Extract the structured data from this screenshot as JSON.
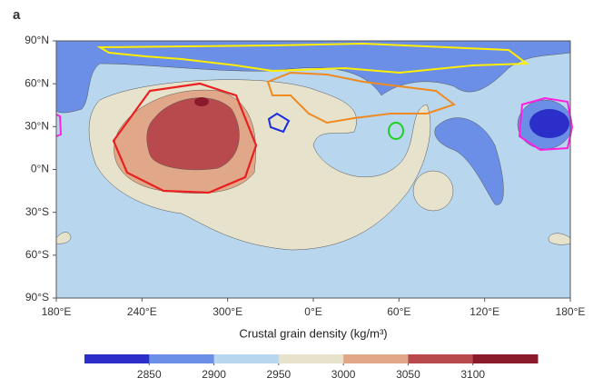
{
  "panel_label": "a",
  "map": {
    "lat_labels": [
      "90°N",
      "60°N",
      "30°N",
      "0°N",
      "30°S",
      "60°S",
      "90°S"
    ],
    "lon_labels": [
      "180°E",
      "240°E",
      "300°E",
      "0°E",
      "60°E",
      "120°E",
      "180°E"
    ]
  },
  "colorbar": {
    "title": "Crustal grain density (kg/m³)",
    "range": [
      2800,
      3150
    ],
    "ticks": [
      2850,
      2900,
      2950,
      3000,
      3050,
      3100
    ],
    "colors": [
      "#2b2ec8",
      "#6b8fe6",
      "#b8d6ee",
      "#e6e2cc",
      "#e0a888",
      "#b84a4e",
      "#8b1a2a"
    ]
  }
}
